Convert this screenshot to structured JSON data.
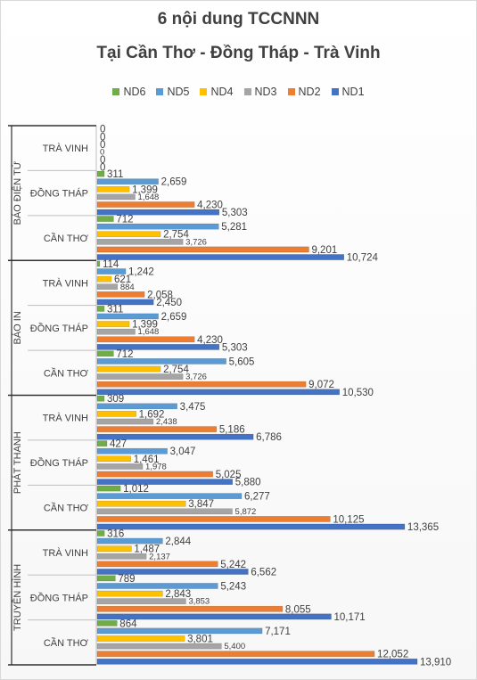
{
  "chart_data": {
    "type": "bar",
    "orientation": "horizontal",
    "title": "6 nội dung TCCNNN",
    "subtitle": "Tại Cần Thơ - Đồng Tháp - Trà Vinh",
    "legend_position": "top",
    "grid": false,
    "xlim": [
      0,
      14000
    ],
    "series_order_top_to_bottom": [
      "ND6",
      "ND5",
      "ND4",
      "ND3",
      "ND2",
      "ND1"
    ],
    "series_colors": {
      "ND6": "#70ad47",
      "ND5": "#5b9bd5",
      "ND4": "#ffc000",
      "ND3": "#a5a5a5",
      "ND2": "#ed7d31",
      "ND1": "#4472c4"
    },
    "groups": [
      {
        "group": "BÁO ĐIỆN TỬ",
        "categories": [
          {
            "label": "TRÀ VINH",
            "values": {
              "ND6": 0,
              "ND5": 0,
              "ND4": 0,
              "ND3": 0,
              "ND2": 0,
              "ND1": 0
            }
          },
          {
            "label": "ĐỒNG THÁP",
            "values": {
              "ND6": 311,
              "ND5": 2659,
              "ND4": 1399,
              "ND3": 1648,
              "ND2": 4230,
              "ND1": 5303
            }
          },
          {
            "label": "CẦN THƠ",
            "values": {
              "ND6": 712,
              "ND5": 5281,
              "ND4": 2754,
              "ND3": 3726,
              "ND2": 9201,
              "ND1": 10724
            }
          }
        ]
      },
      {
        "group": "BÁO IN",
        "categories": [
          {
            "label": "TRÀ VINH",
            "values": {
              "ND6": 114,
              "ND5": 1242,
              "ND4": 621,
              "ND3": 884,
              "ND2": 2058,
              "ND1": 2450
            }
          },
          {
            "label": "ĐỒNG THÁP",
            "values": {
              "ND6": 311,
              "ND5": 2659,
              "ND4": 1399,
              "ND3": 1648,
              "ND2": 4230,
              "ND1": 5303
            }
          },
          {
            "label": "CẦN THƠ",
            "values": {
              "ND6": 712,
              "ND5": 5605,
              "ND4": 2754,
              "ND3": 3726,
              "ND2": 9072,
              "ND1": 10530
            }
          }
        ]
      },
      {
        "group": "PHÁT THANH",
        "categories": [
          {
            "label": "TRÀ VINH",
            "values": {
              "ND6": 309,
              "ND5": 3475,
              "ND4": 1692,
              "ND3": 2438,
              "ND2": 5186,
              "ND1": 6786
            }
          },
          {
            "label": "ĐỒNG THÁP",
            "values": {
              "ND6": 427,
              "ND5": 3047,
              "ND4": 1461,
              "ND3": 1978,
              "ND2": 5025,
              "ND1": 5880
            }
          },
          {
            "label": "CẦN THƠ",
            "values": {
              "ND6": 1012,
              "ND5": 6277,
              "ND4": 3847,
              "ND3": 5872,
              "ND2": 10125,
              "ND1": 13365
            }
          }
        ]
      },
      {
        "group": "TRUYỀN HÌNH",
        "categories": [
          {
            "label": "TRÀ VINH",
            "values": {
              "ND6": 316,
              "ND5": 2844,
              "ND4": 1487,
              "ND3": 2137,
              "ND2": 5242,
              "ND1": 6562
            }
          },
          {
            "label": "ĐỒNG THÁP",
            "values": {
              "ND6": 789,
              "ND5": 5243,
              "ND4": 2843,
              "ND3": 3853,
              "ND2": 8055,
              "ND1": 10171
            }
          },
          {
            "label": "CẦN THƠ",
            "values": {
              "ND6": 864,
              "ND5": 7171,
              "ND4": 3801,
              "ND3": 5400,
              "ND2": 12052,
              "ND1": 13910
            }
          }
        ]
      }
    ]
  }
}
